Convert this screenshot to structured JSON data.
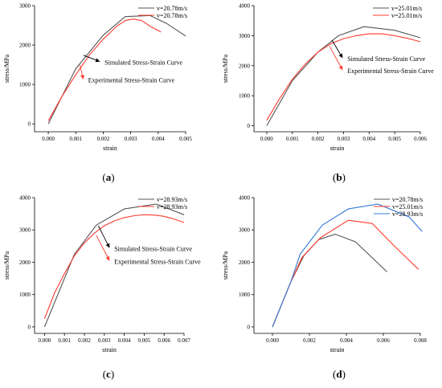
{
  "colors": {
    "gray": "#555555",
    "red": "#ff3b30",
    "blue": "#2f78d6",
    "axis": "#000000"
  },
  "chart_data": [
    {
      "type": "line",
      "panel_label": "a",
      "xlabel": "strain",
      "ylabel": "stress/MPa",
      "xlim": [
        -0.0005,
        0.005
      ],
      "ylim": [
        -200,
        3000
      ],
      "xticks": [
        0.0,
        0.001,
        0.002,
        0.003,
        0.004,
        0.005
      ],
      "xtick_labels": [
        "0.000",
        "0.001",
        "0.002",
        "0.003",
        "0.004",
        "0.005"
      ],
      "yticks": [
        0,
        1000,
        2000,
        3000
      ],
      "ytick_labels": [
        "0",
        "1000",
        "2000",
        "3000"
      ],
      "legend_position": "top-right",
      "series": [
        {
          "name": "v=20.78m/s",
          "color": "#555555",
          "x": [
            0.0,
            0.001,
            0.002,
            0.0028,
            0.0037,
            0.0043,
            0.005
          ],
          "y": [
            0,
            1400,
            2250,
            2720,
            2750,
            2550,
            2230
          ]
        },
        {
          "name": "v=20.78m/s",
          "color": "#ff3b30",
          "x": [
            0.0,
            0.0005,
            0.001,
            0.0015,
            0.002,
            0.0025,
            0.0028,
            0.0031,
            0.0034,
            0.0037,
            0.0041
          ],
          "y": [
            80,
            700,
            1250,
            1750,
            2150,
            2480,
            2620,
            2660,
            2620,
            2480,
            2330
          ]
        }
      ],
      "annotations": [
        {
          "text": "Simulated Stress-Strain Curve",
          "x": 0.00128,
          "y": 1740,
          "color": "#000000",
          "label_x": 0.00205,
          "label_y": 1500
        },
        {
          "text": "Experimental Stress-Strain Curve",
          "x": 0.00115,
          "y": 1490,
          "color": "#ff3b30",
          "label_x": 0.00145,
          "label_y": 1050
        }
      ]
    },
    {
      "type": "line",
      "panel_label": "b",
      "xlabel": "strain",
      "ylabel": "stress/MPa",
      "xlim": [
        -0.0005,
        0.006
      ],
      "ylim": [
        -200,
        4000
      ],
      "xticks": [
        0.0,
        0.001,
        0.002,
        0.003,
        0.004,
        0.005,
        0.006
      ],
      "xtick_labels": [
        "0.000",
        "0.001",
        "0.002",
        "0.003",
        "0.004",
        "0.005",
        "0.006"
      ],
      "yticks": [
        0,
        1000,
        2000,
        3000,
        4000
      ],
      "ytick_labels": [
        "0",
        "1000",
        "2000",
        "3000",
        "4000"
      ],
      "legend_position": "top-right",
      "series": [
        {
          "name": "v=25.01m/s",
          "color": "#555555",
          "x": [
            0.0,
            0.001,
            0.002,
            0.0028,
            0.0038,
            0.005,
            0.006
          ],
          "y": [
            0,
            1500,
            2450,
            3000,
            3300,
            3180,
            2930
          ]
        },
        {
          "name": "v=25.01m/s",
          "color": "#ff3b30",
          "x": [
            0.0,
            0.0005,
            0.001,
            0.0015,
            0.002,
            0.0025,
            0.003,
            0.0035,
            0.004,
            0.0045,
            0.005,
            0.0055,
            0.006
          ],
          "y": [
            180,
            900,
            1550,
            2050,
            2450,
            2730,
            2900,
            3000,
            3060,
            3060,
            3000,
            2910,
            2800
          ]
        }
      ],
      "annotations": [
        {
          "text": "Simulated Stress-Strain Curve",
          "x": 0.00255,
          "y": 2850,
          "color": "#000000",
          "label_x": 0.00315,
          "label_y": 2150
        },
        {
          "text": "Experimental Stress-Strain Curve",
          "x": 0.00245,
          "y": 2650,
          "color": "#ff3b30",
          "label_x": 0.00315,
          "label_y": 1750
        }
      ]
    },
    {
      "type": "line",
      "panel_label": "c",
      "xlabel": "strain",
      "ylabel": "stress/MPa",
      "xlim": [
        -0.0005,
        0.007
      ],
      "ylim": [
        -200,
        4000
      ],
      "xticks": [
        0.0,
        0.001,
        0.002,
        0.003,
        0.004,
        0.005,
        0.006,
        0.007
      ],
      "xtick_labels": [
        "0.000",
        "0.001",
        "0.002",
        "0.003",
        "0.004",
        "0.005",
        "0.006",
        "0.007"
      ],
      "yticks": [
        0,
        1000,
        2000,
        3000,
        4000
      ],
      "ytick_labels": [
        "0",
        "1000",
        "2000",
        "3000",
        "4000"
      ],
      "legend_position": "top-right",
      "series": [
        {
          "name": "v=28.93m/s",
          "color": "#555555",
          "x": [
            0.0,
            0.0015,
            0.0026,
            0.004,
            0.0056,
            0.007
          ],
          "y": [
            0,
            2250,
            3150,
            3650,
            3800,
            3470
          ]
        },
        {
          "name": "v=28.93m/s",
          "color": "#ff3b30",
          "x": [
            0.0,
            0.0005,
            0.001,
            0.0015,
            0.002,
            0.0025,
            0.003,
            0.0035,
            0.004,
            0.0045,
            0.005,
            0.0055,
            0.006,
            0.0065,
            0.007
          ],
          "y": [
            250,
            1050,
            1650,
            2200,
            2600,
            2900,
            3130,
            3280,
            3380,
            3440,
            3470,
            3460,
            3420,
            3340,
            3230
          ]
        }
      ],
      "annotations": [
        {
          "text": "Simulated Stress-Strain Curve",
          "x": 0.0027,
          "y": 3130,
          "color": "#000000",
          "label_x": 0.0035,
          "label_y": 2350
        },
        {
          "text": "Experimental Stress-Strain Curve",
          "x": 0.0026,
          "y": 2830,
          "color": "#ff3b30",
          "label_x": 0.0035,
          "label_y": 1950
        }
      ]
    },
    {
      "type": "line",
      "panel_label": "d",
      "xlabel": "strain",
      "ylabel": "stress/MPa",
      "xlim": [
        -0.001,
        0.008
      ],
      "ylim": [
        -200,
        4000
      ],
      "xticks": [
        0.0,
        0.002,
        0.004,
        0.006,
        0.008
      ],
      "xtick_labels": [
        "0.000",
        "0.002",
        "0.004",
        "0.006",
        "0.008"
      ],
      "yticks": [
        0,
        1000,
        2000,
        3000,
        4000
      ],
      "ytick_labels": [
        "0",
        "1000",
        "2000",
        "3000",
        "4000"
      ],
      "legend_position": "top-right",
      "series": [
        {
          "name": "v=20.78m/s",
          "color": "#555555",
          "x": [
            0.0,
            0.001,
            0.0017,
            0.0025,
            0.0034,
            0.0045,
            0.0062
          ],
          "y": [
            0,
            1400,
            2200,
            2700,
            2870,
            2630,
            1700
          ]
        },
        {
          "name": "v=25.01m/s",
          "color": "#ff3b30",
          "x": [
            0.0,
            0.001,
            0.0016,
            0.0026,
            0.0041,
            0.0054,
            0.0066,
            0.0079
          ],
          "y": [
            0,
            1400,
            2150,
            2760,
            3300,
            3200,
            2500,
            1780
          ]
        },
        {
          "name": "v=28.93m/s",
          "color": "#2f78d6",
          "x": [
            0.0,
            0.001,
            0.0015,
            0.0027,
            0.0041,
            0.0057,
            0.0074,
            0.0081
          ],
          "y": [
            0,
            1400,
            2250,
            3150,
            3650,
            3800,
            3400,
            2950
          ]
        }
      ],
      "annotations": []
    }
  ]
}
